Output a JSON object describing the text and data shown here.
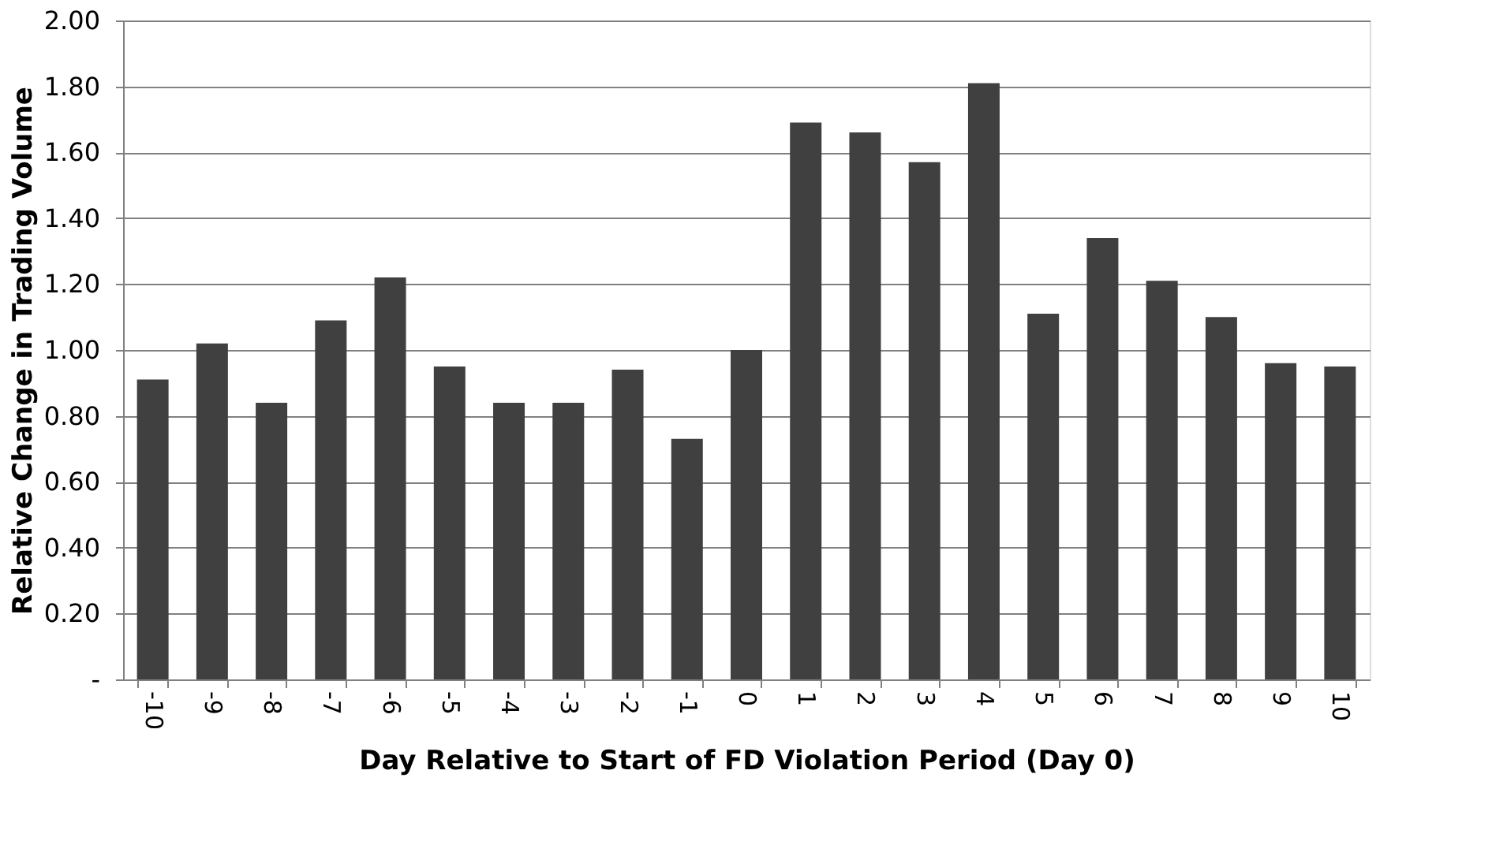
{
  "chart_data": {
    "type": "bar",
    "xlabel": "Day Relative to Start of FD Violation Period (Day 0)",
    "ylabel": "Relative Change in Trading Volume",
    "categories": [
      "-10",
      "-9",
      "-8",
      "-7",
      "-6",
      "-5",
      "-4",
      "-3",
      "-2",
      "-1",
      "0",
      "1",
      "2",
      "3",
      "4",
      "5",
      "6",
      "7",
      "8",
      "9",
      "10"
    ],
    "values": [
      0.91,
      1.02,
      0.84,
      1.09,
      1.22,
      0.95,
      0.84,
      0.84,
      0.94,
      0.73,
      1.0,
      1.69,
      1.66,
      1.57,
      1.81,
      1.11,
      1.34,
      1.21,
      1.1,
      0.96,
      0.95
    ],
    "color": "#404040",
    "ylim": [
      0,
      2
    ],
    "yticks": [
      {
        "value": 0,
        "label": "-"
      },
      {
        "value": 0.2,
        "label": "0.20"
      },
      {
        "value": 0.4,
        "label": "0.40"
      },
      {
        "value": 0.6,
        "label": "0.60"
      },
      {
        "value": 0.8,
        "label": "0.80"
      },
      {
        "value": 1.0,
        "label": "1.00"
      },
      {
        "value": 1.2,
        "label": "1.20"
      },
      {
        "value": 1.4,
        "label": "1.40"
      },
      {
        "value": 1.6,
        "label": "1.60"
      },
      {
        "value": 1.8,
        "label": "1.80"
      },
      {
        "value": 2.0,
        "label": "2.00"
      }
    ],
    "grid": "y"
  }
}
